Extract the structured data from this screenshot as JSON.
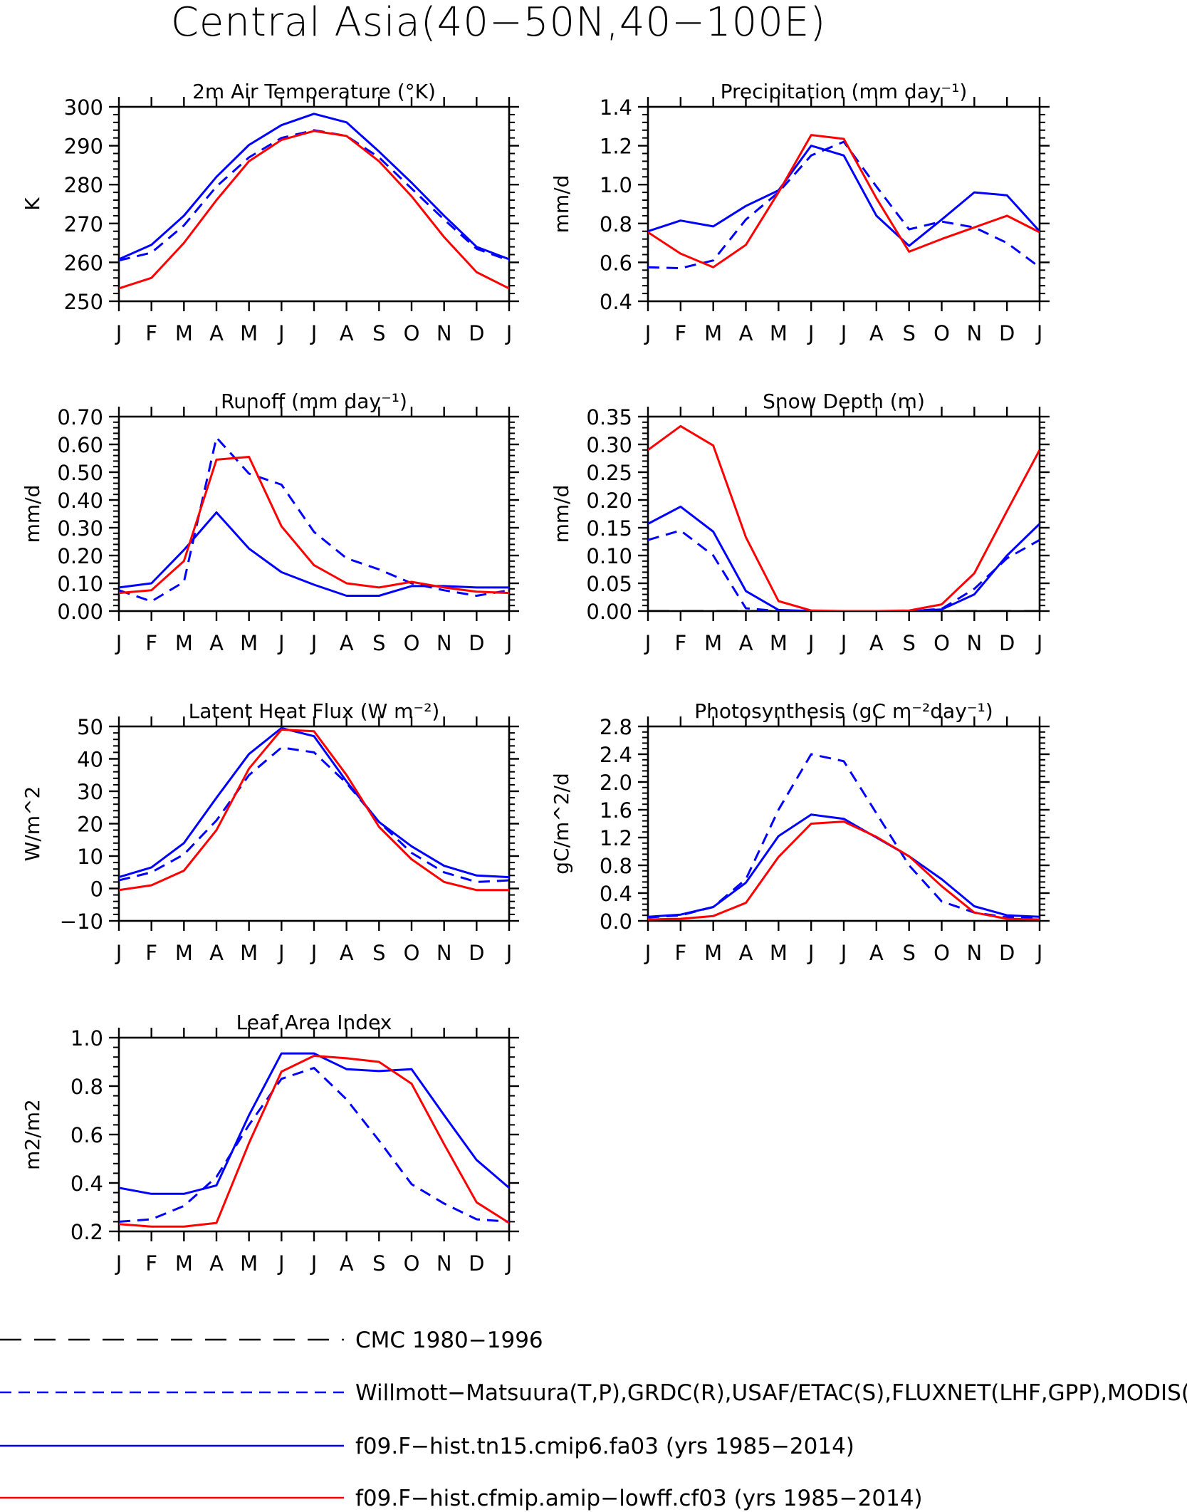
{
  "figure": {
    "title": "Central Asia(40−50N,40−100E)"
  },
  "months": [
    "J",
    "F",
    "M",
    "A",
    "M",
    "J",
    "J",
    "A",
    "S",
    "O",
    "N",
    "D",
    "J"
  ],
  "series_styles": [
    {
      "key": "cmc",
      "color": "#000000",
      "dash": "long"
    },
    {
      "key": "obs",
      "color": "#0000ff",
      "dash": "short"
    },
    {
      "key": "cmip6",
      "color": "#0000ff",
      "dash": "solid"
    },
    {
      "key": "cfmip",
      "color": "#ff0000",
      "dash": "solid"
    }
  ],
  "legend": {
    "entries": [
      {
        "label": "CMC 1980−1996",
        "color": "#000000",
        "dash": "long"
      },
      {
        "label": "Willmott−Matsuura(T,P),GRDC(R),USAF/ETAC(S),FLUXNET(LHF,GPP),MODIS(L",
        "color": "#0000ff",
        "dash": "short"
      },
      {
        "label": "f09.F−hist.tn15.cmip6.fa03 (yrs 1985−2014)",
        "color": "#0000ff",
        "dash": "solid"
      },
      {
        "label": "f09.F−hist.cfmip.amip−lowff.cf03 (yrs 1985−2014)",
        "color": "#ff0000",
        "dash": "solid"
      }
    ]
  },
  "chart_data": [
    {
      "type": "line",
      "title": "2m Air Temperature (°K)",
      "ylabel": "K",
      "ylim": [
        250,
        300
      ],
      "yticks": [
        250,
        260,
        270,
        280,
        290,
        300
      ],
      "ytick_labels": [
        "250",
        "260",
        "270",
        "280",
        "290",
        "300"
      ],
      "categories": [
        "J",
        "F",
        "M",
        "A",
        "M",
        "J",
        "J",
        "A",
        "S",
        "O",
        "N",
        "D",
        "J"
      ],
      "series": [
        {
          "key": "obs",
          "values": [
            260.5,
            262.5,
            269.5,
            279.5,
            287.0,
            292.0,
            294.0,
            292.5,
            287.0,
            279.0,
            271.0,
            263.5,
            260.5
          ]
        },
        {
          "key": "cmip6",
          "values": [
            260.8,
            264.5,
            272.0,
            282.0,
            290.2,
            295.3,
            298.2,
            296.0,
            288.5,
            280.5,
            272.0,
            264.0,
            260.8
          ]
        },
        {
          "key": "cfmip",
          "values": [
            253.3,
            256.0,
            265.0,
            276.0,
            286.0,
            291.5,
            293.8,
            292.5,
            286.0,
            277.0,
            266.5,
            257.5,
            253.3
          ]
        }
      ]
    },
    {
      "type": "line",
      "title": "Precipitation (mm day⁻¹)",
      "ylabel": "mm/d",
      "ylim": [
        0.4,
        1.4
      ],
      "yticks": [
        0.4,
        0.6,
        0.8,
        1.0,
        1.2,
        1.4
      ],
      "ytick_labels": [
        "0.4",
        "0.6",
        "0.8",
        "1.0",
        "1.2",
        "1.4"
      ],
      "categories": [
        "J",
        "F",
        "M",
        "A",
        "M",
        "J",
        "J",
        "A",
        "S",
        "O",
        "N",
        "D",
        "J"
      ],
      "series": [
        {
          "key": "obs",
          "values": [
            0.575,
            0.57,
            0.61,
            0.82,
            0.96,
            1.15,
            1.22,
            0.99,
            0.77,
            0.81,
            0.78,
            0.7,
            0.575
          ]
        },
        {
          "key": "cmip6",
          "values": [
            0.76,
            0.815,
            0.785,
            0.89,
            0.97,
            1.2,
            1.15,
            0.84,
            0.685,
            0.82,
            0.96,
            0.945,
            0.76
          ]
        },
        {
          "key": "cfmip",
          "values": [
            0.755,
            0.645,
            0.575,
            0.69,
            0.96,
            1.255,
            1.235,
            0.93,
            0.655,
            0.72,
            0.78,
            0.84,
            0.755
          ]
        }
      ]
    },
    {
      "type": "line",
      "title": "Runoff (mm day⁻¹)",
      "ylabel": "mm/d",
      "ylim": [
        0,
        0.7
      ],
      "yticks": [
        0,
        0.1,
        0.2,
        0.3,
        0.4,
        0.5,
        0.6,
        0.7
      ],
      "ytick_labels": [
        "0.00",
        "0.10",
        "0.20",
        "0.30",
        "0.40",
        "0.50",
        "0.60",
        "0.70"
      ],
      "categories": [
        "J",
        "F",
        "M",
        "A",
        "M",
        "J",
        "J",
        "A",
        "S",
        "O",
        "N",
        "D",
        "J"
      ],
      "series": [
        {
          "key": "obs",
          "values": [
            0.075,
            0.035,
            0.105,
            0.625,
            0.495,
            0.455,
            0.285,
            0.19,
            0.15,
            0.1,
            0.075,
            0.055,
            0.075
          ]
        },
        {
          "key": "cmip6",
          "values": [
            0.085,
            0.1,
            0.22,
            0.355,
            0.225,
            0.14,
            0.095,
            0.055,
            0.055,
            0.09,
            0.09,
            0.085,
            0.085
          ]
        },
        {
          "key": "cfmip",
          "values": [
            0.065,
            0.075,
            0.18,
            0.545,
            0.555,
            0.305,
            0.165,
            0.1,
            0.085,
            0.105,
            0.085,
            0.07,
            0.065
          ]
        }
      ]
    },
    {
      "type": "line",
      "title": "Snow Depth (m)",
      "ylabel": "mm/d",
      "ylim": [
        0,
        0.35
      ],
      "yticks": [
        0,
        0.05,
        0.1,
        0.15,
        0.2,
        0.25,
        0.3,
        0.35
      ],
      "ytick_labels": [
        "0.00",
        "0.05",
        "0.10",
        "0.15",
        "0.20",
        "0.25",
        "0.30",
        "0.35"
      ],
      "categories": [
        "J",
        "F",
        "M",
        "A",
        "M",
        "J",
        "J",
        "A",
        "S",
        "O",
        "N",
        "D",
        "J"
      ],
      "series": [
        {
          "key": "cmc",
          "values": [
            0,
            0,
            0,
            0,
            0,
            0,
            0,
            0,
            0,
            0,
            0,
            0,
            0
          ]
        },
        {
          "key": "obs",
          "values": [
            0.128,
            0.145,
            0.1,
            0.005,
            0.0,
            0.0,
            0.0,
            0.0,
            0.0,
            0.004,
            0.04,
            0.095,
            0.128
          ]
        },
        {
          "key": "cmip6",
          "values": [
            0.157,
            0.188,
            0.143,
            0.036,
            0.002,
            0.0,
            0.0,
            0.0,
            0.0,
            0.003,
            0.03,
            0.1,
            0.157
          ]
        },
        {
          "key": "cfmip",
          "values": [
            0.29,
            0.333,
            0.298,
            0.133,
            0.018,
            0.001,
            0.0,
            0.0,
            0.001,
            0.012,
            0.068,
            0.18,
            0.29
          ]
        }
      ]
    },
    {
      "type": "line",
      "title": "Latent Heat Flux (W m⁻²)",
      "ylabel": "W/m^2",
      "ylim": [
        -10,
        50
      ],
      "yticks": [
        -10,
        0,
        10,
        20,
        30,
        40,
        50
      ],
      "ytick_labels": [
        "−10",
        "0",
        "10",
        "20",
        "30",
        "40",
        "50"
      ],
      "categories": [
        "J",
        "F",
        "M",
        "A",
        "M",
        "J",
        "J",
        "A",
        "S",
        "O",
        "N",
        "D",
        "J"
      ],
      "series": [
        {
          "key": "obs",
          "values": [
            2.5,
            5.0,
            10.5,
            21.0,
            35.0,
            43.5,
            42.0,
            32.5,
            20.5,
            11.0,
            5.0,
            2.0,
            2.5
          ]
        },
        {
          "key": "cmip6",
          "values": [
            3.5,
            6.5,
            14.0,
            28.0,
            41.5,
            49.5,
            47.0,
            33.0,
            20.5,
            13.0,
            7.0,
            4.0,
            3.5
          ]
        },
        {
          "key": "cfmip",
          "values": [
            -0.5,
            1.0,
            5.5,
            18.0,
            37.0,
            49.0,
            48.5,
            35.0,
            19.0,
            9.0,
            2.0,
            -0.5,
            -0.5
          ]
        }
      ]
    },
    {
      "type": "line",
      "title": "Photosynthesis (gC m⁻²day⁻¹)",
      "ylabel": "gC/m^2/d",
      "ylim": [
        0,
        2.8
      ],
      "yticks": [
        0,
        0.4,
        0.8,
        1.2,
        1.6,
        2.0,
        2.4,
        2.8
      ],
      "ytick_labels": [
        "0.0",
        "0.4",
        "0.8",
        "1.2",
        "1.6",
        "2.0",
        "2.4",
        "2.8"
      ],
      "categories": [
        "J",
        "F",
        "M",
        "A",
        "M",
        "J",
        "J",
        "A",
        "S",
        "O",
        "N",
        "D",
        "J"
      ],
      "series": [
        {
          "key": "obs",
          "values": [
            0.05,
            0.08,
            0.2,
            0.6,
            1.6,
            2.4,
            2.3,
            1.55,
            0.8,
            0.28,
            0.12,
            0.05,
            0.05
          ]
        },
        {
          "key": "cmip6",
          "values": [
            0.06,
            0.09,
            0.2,
            0.55,
            1.22,
            1.53,
            1.47,
            1.2,
            0.93,
            0.6,
            0.21,
            0.08,
            0.06
          ]
        },
        {
          "key": "cfmip",
          "values": [
            0.02,
            0.03,
            0.07,
            0.26,
            0.92,
            1.4,
            1.43,
            1.21,
            0.93,
            0.5,
            0.12,
            0.03,
            0.02
          ]
        }
      ]
    },
    {
      "type": "line",
      "title": "Leaf Area Index",
      "ylabel": "m2/m2",
      "ylim": [
        0.2,
        1.0
      ],
      "yticks": [
        0.2,
        0.4,
        0.6,
        0.8,
        1.0
      ],
      "ytick_labels": [
        "0.2",
        "0.4",
        "0.6",
        "0.8",
        "1.0"
      ],
      "categories": [
        "J",
        "F",
        "M",
        "A",
        "M",
        "J",
        "J",
        "A",
        "S",
        "O",
        "N",
        "D",
        "J"
      ],
      "series": [
        {
          "key": "obs",
          "values": [
            0.24,
            0.25,
            0.305,
            0.425,
            0.64,
            0.83,
            0.875,
            0.745,
            0.575,
            0.395,
            0.315,
            0.25,
            0.24
          ]
        },
        {
          "key": "cmip6",
          "values": [
            0.38,
            0.355,
            0.355,
            0.39,
            0.68,
            0.935,
            0.935,
            0.87,
            0.862,
            0.87,
            0.68,
            0.495,
            0.38
          ]
        },
        {
          "key": "cfmip",
          "values": [
            0.23,
            0.22,
            0.22,
            0.235,
            0.565,
            0.86,
            0.925,
            0.915,
            0.9,
            0.81,
            0.56,
            0.32,
            0.235
          ]
        }
      ]
    }
  ]
}
